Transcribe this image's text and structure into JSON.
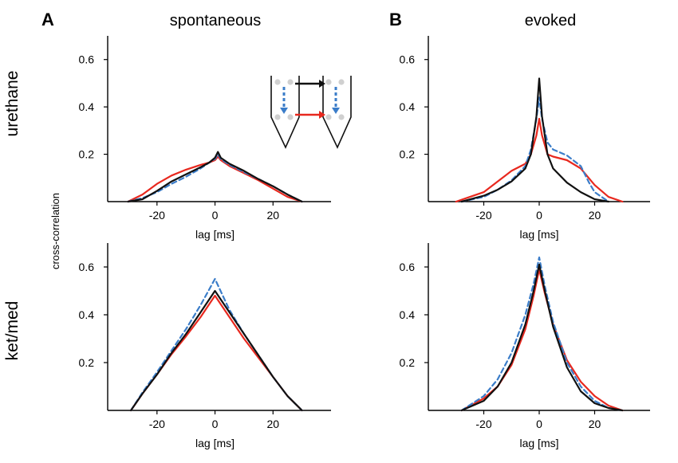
{
  "figure": {
    "panel_letters": [
      "A",
      "B"
    ],
    "column_titles": [
      "spontaneous",
      "evoked"
    ],
    "row_labels": [
      "urethane",
      "ket/med"
    ],
    "shared_ylabel": "cross-correlation"
  },
  "series_styles": [
    {
      "name": "black",
      "color": "#111111",
      "dash": "solid"
    },
    {
      "name": "red",
      "color": "#e8281e",
      "dash": "solid"
    },
    {
      "name": "blue",
      "color": "#3b7dc9",
      "dash": "dashed"
    }
  ],
  "inset": {
    "description_icon": "two-shank-probe-schematic-icon",
    "arrow_colors": [
      "#111111",
      "#e8281e",
      "#3b7dc9"
    ]
  },
  "chart_data": [
    {
      "type": "line",
      "panel": "A-top",
      "title": "spontaneous",
      "row": "urethane",
      "xlabel": "lag [ms]",
      "ylabel": "cross-correlation",
      "xlim": [
        -37,
        40
      ],
      "ylim": [
        0,
        0.7
      ],
      "xticks": [
        -20,
        0,
        20
      ],
      "xtick_labels": [
        "-20",
        "0",
        "20"
      ],
      "yticks": [
        0.2,
        0.4,
        0.6
      ],
      "ytick_labels": [
        "0.2",
        "0.4",
        "0.6"
      ],
      "series": [
        {
          "name": "black",
          "x": [
            -30,
            -25,
            -20,
            -15,
            -10,
            -5,
            -2,
            0,
            1,
            2,
            5,
            10,
            15,
            20,
            25,
            30
          ],
          "y": [
            0.0,
            0.01,
            0.045,
            0.085,
            0.115,
            0.145,
            0.165,
            0.185,
            0.21,
            0.185,
            0.16,
            0.13,
            0.095,
            0.065,
            0.03,
            0.0
          ]
        },
        {
          "name": "red",
          "x": [
            -30,
            -25,
            -20,
            -15,
            -10,
            -5,
            -2,
            0,
            1,
            2,
            5,
            10,
            15,
            20,
            25,
            30
          ],
          "y": [
            0.0,
            0.03,
            0.075,
            0.11,
            0.135,
            0.155,
            0.165,
            0.175,
            0.19,
            0.175,
            0.15,
            0.12,
            0.09,
            0.055,
            0.02,
            0.0
          ]
        },
        {
          "name": "blue",
          "x": [
            -30,
            -25,
            -20,
            -15,
            -10,
            -5,
            -2,
            0,
            1,
            2,
            5,
            10,
            15,
            20,
            25,
            30
          ],
          "y": [
            0.0,
            0.015,
            0.04,
            0.075,
            0.105,
            0.14,
            0.165,
            0.18,
            0.2,
            0.18,
            0.155,
            0.125,
            0.095,
            0.065,
            0.03,
            0.0
          ]
        }
      ]
    },
    {
      "type": "line",
      "panel": "B-top",
      "title": "evoked",
      "row": "urethane",
      "xlabel": "lag [ms]",
      "ylabel": "cross-correlation",
      "xlim": [
        -40,
        40
      ],
      "ylim": [
        0,
        0.7
      ],
      "xticks": [
        -20,
        0,
        20
      ],
      "xtick_labels": [
        "-20",
        "0",
        "20"
      ],
      "yticks": [
        0.2,
        0.4,
        0.6
      ],
      "ytick_labels": [
        "0.2",
        "0.4",
        "0.6"
      ],
      "series": [
        {
          "name": "black",
          "x": [
            -28,
            -20,
            -15,
            -10,
            -5,
            -3,
            -1,
            0,
            1,
            3,
            5,
            10,
            15,
            20,
            25
          ],
          "y": [
            0.0,
            0.025,
            0.05,
            0.085,
            0.14,
            0.2,
            0.36,
            0.52,
            0.36,
            0.2,
            0.14,
            0.08,
            0.04,
            0.01,
            0.0
          ]
        },
        {
          "name": "red",
          "x": [
            -30,
            -25,
            -20,
            -15,
            -10,
            -5,
            -3,
            -1,
            0,
            1,
            3,
            5,
            10,
            15,
            20,
            25,
            30
          ],
          "y": [
            0.0,
            0.02,
            0.04,
            0.085,
            0.13,
            0.16,
            0.2,
            0.28,
            0.35,
            0.28,
            0.2,
            0.19,
            0.175,
            0.14,
            0.07,
            0.02,
            0.0
          ]
        },
        {
          "name": "blue",
          "x": [
            -28,
            -20,
            -15,
            -10,
            -5,
            -3,
            -1,
            0,
            1,
            3,
            5,
            10,
            15,
            18,
            20,
            25
          ],
          "y": [
            0.0,
            0.02,
            0.05,
            0.09,
            0.15,
            0.22,
            0.35,
            0.44,
            0.35,
            0.25,
            0.22,
            0.195,
            0.15,
            0.08,
            0.04,
            0.0
          ]
        }
      ]
    },
    {
      "type": "line",
      "panel": "A-bottom",
      "title": "spontaneous",
      "row": "ket/med",
      "xlabel": "lag [ms]",
      "ylabel": "cross-correlation",
      "xlim": [
        -37,
        40
      ],
      "ylim": [
        0,
        0.7
      ],
      "xticks": [
        -20,
        0,
        20
      ],
      "xtick_labels": [
        "-20",
        "0",
        "20"
      ],
      "yticks": [
        0.2,
        0.4,
        0.6
      ],
      "ytick_labels": [
        "0.2",
        "0.4",
        "0.6"
      ],
      "series": [
        {
          "name": "black",
          "x": [
            -29,
            -25,
            -20,
            -15,
            -10,
            -5,
            0,
            5,
            10,
            15,
            20,
            25,
            30
          ],
          "y": [
            0.0,
            0.07,
            0.15,
            0.24,
            0.32,
            0.41,
            0.5,
            0.41,
            0.32,
            0.23,
            0.14,
            0.06,
            0.0
          ]
        },
        {
          "name": "red",
          "x": [
            -29,
            -25,
            -20,
            -15,
            -10,
            -5,
            0,
            5,
            10,
            15,
            20,
            25,
            30
          ],
          "y": [
            0.0,
            0.07,
            0.15,
            0.235,
            0.31,
            0.39,
            0.48,
            0.39,
            0.3,
            0.22,
            0.14,
            0.06,
            0.0
          ]
        },
        {
          "name": "blue",
          "x": [
            -29,
            -25,
            -20,
            -15,
            -10,
            -5,
            0,
            5,
            10,
            15,
            20,
            25,
            30
          ],
          "y": [
            0.0,
            0.075,
            0.16,
            0.25,
            0.34,
            0.44,
            0.55,
            0.42,
            0.32,
            0.23,
            0.14,
            0.06,
            0.0
          ]
        }
      ]
    },
    {
      "type": "line",
      "panel": "B-bottom",
      "title": "evoked",
      "row": "ket/med",
      "xlabel": "lag [ms]",
      "ylabel": "cross-correlation",
      "xlim": [
        -40,
        40
      ],
      "ylim": [
        0,
        0.7
      ],
      "xticks": [
        -20,
        0,
        20
      ],
      "xtick_labels": [
        "-20",
        "0",
        "20"
      ],
      "yticks": [
        0.2,
        0.4,
        0.6
      ],
      "ytick_labels": [
        "0.2",
        "0.4",
        "0.6"
      ],
      "series": [
        {
          "name": "black",
          "x": [
            -28,
            -20,
            -15,
            -10,
            -5,
            -2,
            0,
            2,
            5,
            10,
            15,
            20,
            25,
            30
          ],
          "y": [
            0.0,
            0.04,
            0.1,
            0.2,
            0.36,
            0.5,
            0.61,
            0.5,
            0.35,
            0.18,
            0.08,
            0.03,
            0.01,
            0.0
          ]
        },
        {
          "name": "red",
          "x": [
            -28,
            -20,
            -15,
            -10,
            -5,
            -2,
            0,
            2,
            5,
            10,
            15,
            20,
            25,
            30
          ],
          "y": [
            0.0,
            0.05,
            0.1,
            0.19,
            0.34,
            0.48,
            0.59,
            0.49,
            0.36,
            0.21,
            0.12,
            0.06,
            0.02,
            0.0
          ]
        },
        {
          "name": "blue",
          "x": [
            -28,
            -20,
            -15,
            -10,
            -5,
            -2,
            0,
            2,
            5,
            10,
            15,
            20,
            25,
            30
          ],
          "y": [
            0.0,
            0.06,
            0.13,
            0.24,
            0.4,
            0.53,
            0.64,
            0.52,
            0.37,
            0.2,
            0.1,
            0.04,
            0.01,
            0.0
          ]
        }
      ]
    }
  ]
}
